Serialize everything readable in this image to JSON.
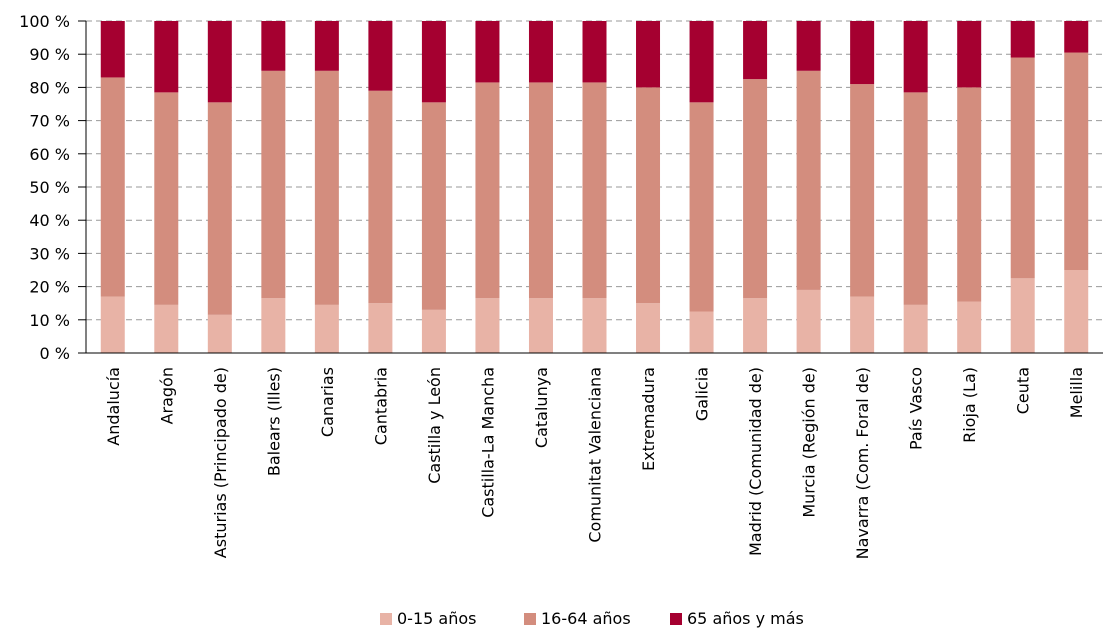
{
  "chart_data": {
    "type": "bar",
    "stacked": true,
    "categories": [
      "Andalucía",
      "Aragón",
      "Asturias (Principado de)",
      "Balears (Illes)",
      "Canarias",
      "Cantabria",
      "Castilla y León",
      "Castilla-La Mancha",
      "Catalunya",
      "Comunitat Valenciana",
      "Extremadura",
      "Galicia",
      "Madrid (Comunidad de)",
      "Murcia (Región de)",
      "Navarra (Com. Foral de)",
      "País Vasco",
      "Rioja (La)",
      "Ceuta",
      "Melilla"
    ],
    "series": [
      {
        "name": "0-15 años",
        "color": "#e8b3a6",
        "values": [
          17,
          14.5,
          11.5,
          16.5,
          14.5,
          15,
          13,
          16.5,
          16.5,
          16.5,
          15,
          12.5,
          16.5,
          19,
          17,
          14.5,
          15.5,
          22.5,
          25
        ]
      },
      {
        "name": "16-64 años",
        "color": "#d38d7e",
        "values": [
          66,
          64,
          64,
          68.5,
          70.5,
          64,
          62.5,
          65,
          65,
          65,
          65,
          63,
          66,
          66,
          64,
          64,
          64.5,
          66.5,
          65.5
        ]
      },
      {
        "name": "65 años y más",
        "color": "#a50030",
        "values": [
          17,
          21.5,
          24.5,
          15,
          15,
          21,
          24.5,
          18.5,
          18.5,
          18.5,
          20,
          24.5,
          17.5,
          15,
          19,
          21.5,
          20,
          11,
          9.5
        ]
      }
    ],
    "ylim": [
      0,
      100
    ],
    "yticks": [
      "0 %",
      "10 %",
      "20 %",
      "30 %",
      "40 %",
      "50 %",
      "60 %",
      "70 %",
      "80 %",
      "90 %",
      "100 %"
    ],
    "grid": true,
    "legend_position": "bottom-center"
  }
}
